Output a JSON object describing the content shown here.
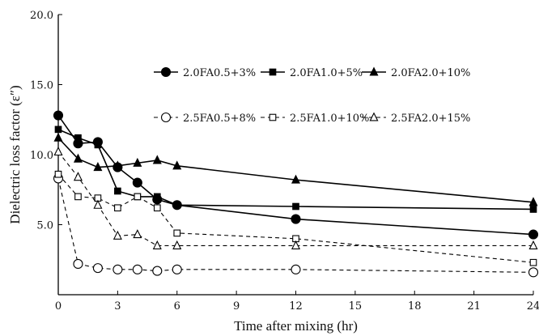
{
  "chart_data": {
    "type": "line",
    "xlabel": "Time after mixing (hr)",
    "ylabel": "Dielectric loss factor  (ε″)",
    "xlim": [
      0,
      24
    ],
    "ylim": [
      0,
      20
    ],
    "x_ticks": [
      "0",
      "3",
      "6",
      "9",
      "12",
      "15",
      "18",
      "21",
      "24"
    ],
    "y_ticks": [
      "5.0",
      "10.0",
      "15.0",
      "20.0"
    ],
    "grid": false,
    "legend_position": "top-right",
    "series": [
      {
        "name": "2.0FA0.5+3%",
        "marker": "circle",
        "filled": true,
        "dashed": false,
        "x": [
          0,
          1,
          2,
          3,
          4,
          5,
          6,
          12,
          24
        ],
        "y": [
          12.8,
          10.8,
          10.9,
          9.1,
          8.0,
          6.8,
          6.4,
          5.4,
          4.3
        ]
      },
      {
        "name": "2.0FA1.0+5%",
        "marker": "square",
        "filled": true,
        "dashed": false,
        "x": [
          0,
          1,
          2,
          3,
          4,
          5,
          6,
          12,
          24
        ],
        "y": [
          11.8,
          11.2,
          10.7,
          7.4,
          7.0,
          7.0,
          6.4,
          6.3,
          6.1
        ]
      },
      {
        "name": "2.0FA2.0+10%",
        "marker": "triangle",
        "filled": true,
        "dashed": false,
        "x": [
          0,
          1,
          2,
          3,
          4,
          5,
          6,
          12,
          24
        ],
        "y": [
          11.2,
          9.7,
          9.1,
          9.2,
          9.4,
          9.6,
          9.2,
          8.2,
          6.6
        ]
      },
      {
        "name": "2.5FA0.5+8%",
        "marker": "circle",
        "filled": false,
        "dashed": true,
        "x": [
          0,
          1,
          2,
          3,
          4,
          5,
          6,
          12,
          24
        ],
        "y": [
          8.3,
          2.2,
          1.9,
          1.8,
          1.8,
          1.7,
          1.8,
          1.8,
          1.6
        ]
      },
      {
        "name": "2.5FA1.0+10%",
        "marker": "square",
        "filled": false,
        "dashed": true,
        "x": [
          0,
          1,
          2,
          3,
          4,
          5,
          6,
          12,
          24
        ],
        "y": [
          8.6,
          7.0,
          6.9,
          6.2,
          7.0,
          6.2,
          4.4,
          4.0,
          2.3
        ]
      },
      {
        "name": "2.5FA2.0+15%",
        "marker": "triangle",
        "filled": false,
        "dashed": true,
        "x": [
          0,
          1,
          2,
          3,
          4,
          5,
          6,
          12,
          24
        ],
        "y": [
          10.2,
          8.4,
          6.4,
          4.2,
          4.3,
          3.5,
          3.5,
          3.5,
          3.5
        ]
      }
    ]
  }
}
